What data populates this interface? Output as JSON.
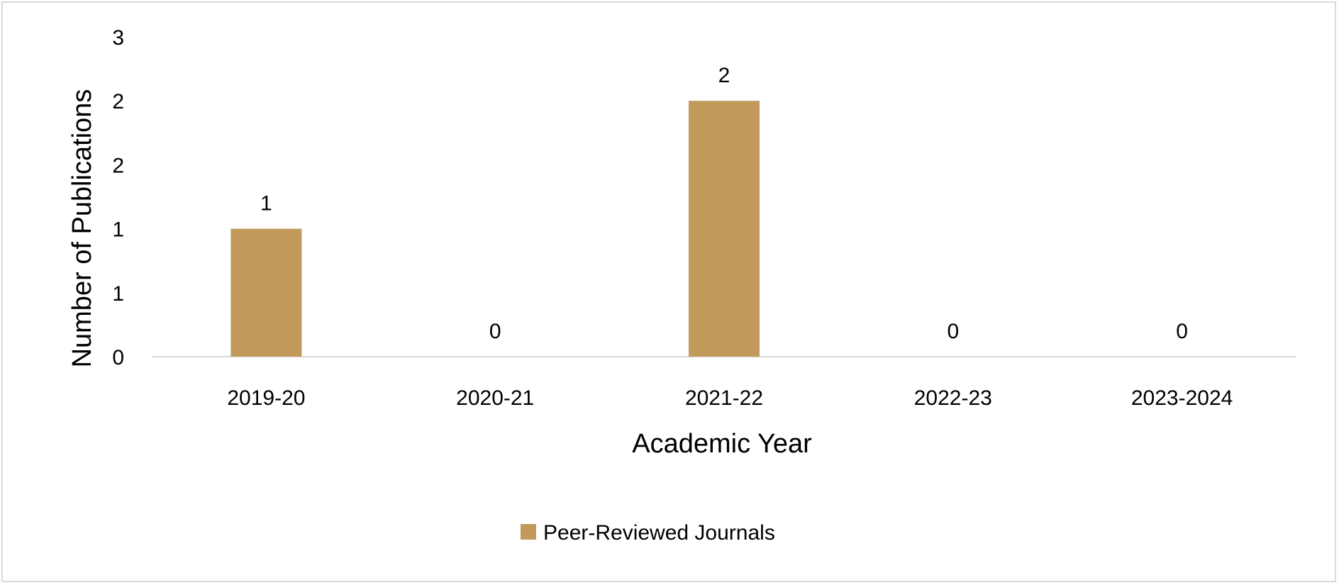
{
  "chart_data": {
    "type": "bar",
    "title": "",
    "xlabel": "Academic Year",
    "ylabel": "Number of Publications",
    "categories": [
      "2019-20",
      "2020-21",
      "2021-22",
      "2022-23",
      "2023-2024"
    ],
    "series": [
      {
        "name": "Peer-Reviewed Journals",
        "values": [
          1,
          0,
          2,
          0,
          0
        ],
        "data_labels": [
          "1",
          "0",
          "2",
          "0",
          "0"
        ],
        "color": "#C0995B"
      }
    ],
    "ylim": [
      0,
      2.5
    ],
    "yticks": [
      0,
      0.5,
      1,
      1.5,
      2,
      2.5
    ],
    "ytick_labels": [
      "0",
      "1",
      "1",
      "2",
      "2",
      "3"
    ],
    "grid": false,
    "legend_position": "bottom",
    "axis_color": "#d9d9d9"
  }
}
